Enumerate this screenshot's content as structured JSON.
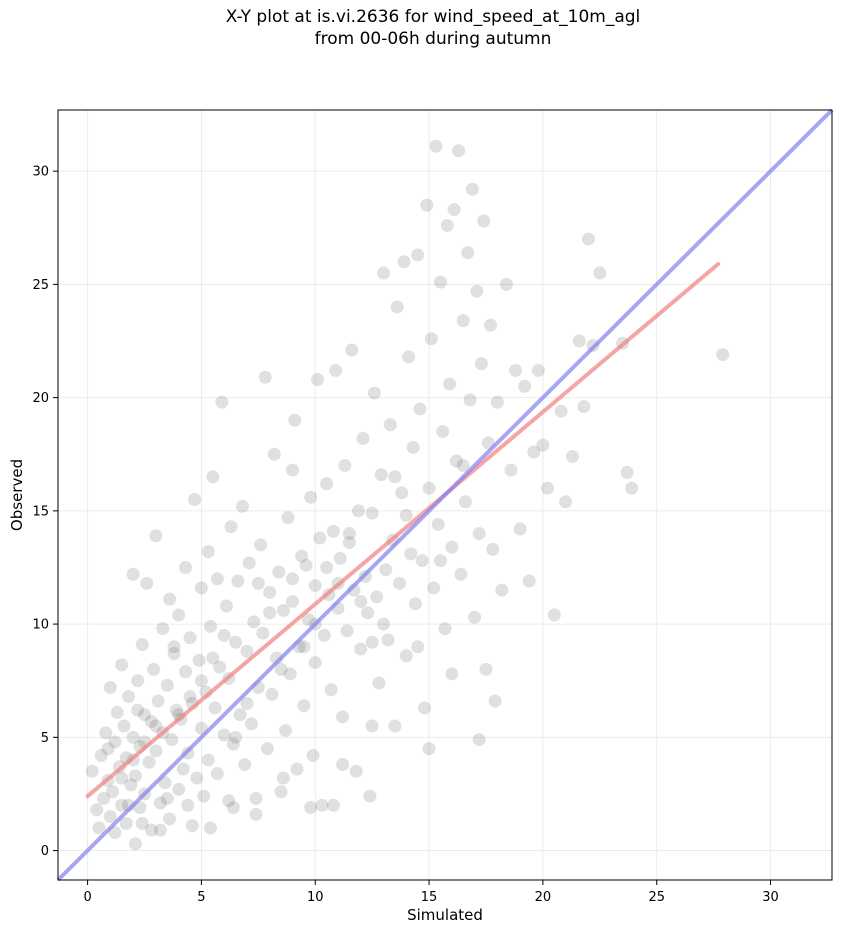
{
  "chart_data": {
    "type": "scatter",
    "title_line1": "X-Y plot at is.vi.2636 for wind_speed_at_10m_agl",
    "title_line2": "from 00-06h during autumn",
    "xlabel": "Simulated",
    "ylabel": "Observed",
    "xlim": [
      -1.3,
      32.7
    ],
    "ylim": [
      -1.3,
      32.7
    ],
    "xticks": [
      0,
      5,
      10,
      15,
      20,
      25,
      30
    ],
    "yticks": [
      0,
      5,
      10,
      15,
      20,
      25,
      30
    ],
    "grid": true,
    "point_color": "#404040",
    "fit_line": {
      "color": "#f08080",
      "x": [
        0,
        27.7
      ],
      "y": [
        2.4,
        25.9
      ]
    },
    "identity_line": {
      "color": "#8080f0",
      "x": [
        -1.3,
        32.7
      ],
      "y": [
        -1.3,
        32.7
      ]
    },
    "points": [
      [
        0.2,
        3.5
      ],
      [
        0.4,
        1.8
      ],
      [
        0.5,
        1.0
      ],
      [
        0.6,
        4.2
      ],
      [
        0.7,
        2.3
      ],
      [
        0.8,
        5.2
      ],
      [
        0.9,
        3.1
      ],
      [
        1.0,
        1.5
      ],
      [
        1.0,
        7.2
      ],
      [
        1.1,
        2.6
      ],
      [
        1.2,
        4.8
      ],
      [
        1.2,
        0.8
      ],
      [
        1.3,
        6.1
      ],
      [
        1.4,
        3.7
      ],
      [
        1.5,
        2.0
      ],
      [
        1.5,
        8.2
      ],
      [
        1.6,
        5.5
      ],
      [
        1.7,
        1.2
      ],
      [
        1.7,
        4.1
      ],
      [
        1.8,
        6.8
      ],
      [
        1.9,
        2.9
      ],
      [
        2.0,
        5.0
      ],
      [
        2.0,
        12.2
      ],
      [
        2.1,
        3.3
      ],
      [
        2.1,
        0.3
      ],
      [
        2.2,
        7.5
      ],
      [
        2.3,
        4.6
      ],
      [
        2.3,
        1.9
      ],
      [
        2.4,
        9.1
      ],
      [
        2.5,
        6.0
      ],
      [
        2.5,
        2.5
      ],
      [
        2.6,
        11.8
      ],
      [
        2.7,
        3.9
      ],
      [
        2.8,
        5.7
      ],
      [
        2.8,
        0.9
      ],
      [
        2.9,
        8.0
      ],
      [
        3.0,
        4.4
      ],
      [
        3.0,
        13.9
      ],
      [
        3.1,
        6.6
      ],
      [
        3.2,
        2.1
      ],
      [
        3.3,
        9.8
      ],
      [
        3.3,
        5.2
      ],
      [
        3.4,
        3.0
      ],
      [
        3.5,
        7.3
      ],
      [
        3.6,
        11.1
      ],
      [
        3.6,
        1.4
      ],
      [
        3.7,
        4.9
      ],
      [
        3.8,
        8.7
      ],
      [
        3.9,
        6.2
      ],
      [
        4.0,
        2.7
      ],
      [
        4.0,
        10.4
      ],
      [
        4.1,
        5.8
      ],
      [
        4.2,
        3.6
      ],
      [
        4.3,
        12.5
      ],
      [
        4.3,
        7.9
      ],
      [
        4.4,
        4.3
      ],
      [
        4.5,
        9.4
      ],
      [
        4.6,
        1.1
      ],
      [
        4.6,
        6.5
      ],
      [
        4.7,
        15.5
      ],
      [
        4.8,
        3.2
      ],
      [
        4.9,
        8.4
      ],
      [
        5.0,
        5.4
      ],
      [
        5.0,
        11.6
      ],
      [
        5.1,
        2.4
      ],
      [
        5.2,
        7.0
      ],
      [
        5.3,
        13.2
      ],
      [
        5.3,
        4.0
      ],
      [
        5.4,
        9.9
      ],
      [
        5.5,
        16.5
      ],
      [
        5.6,
        6.3
      ],
      [
        5.7,
        3.4
      ],
      [
        5.7,
        12.0
      ],
      [
        5.8,
        8.1
      ],
      [
        5.9,
        19.8
      ],
      [
        6.0,
        5.1
      ],
      [
        6.1,
        10.8
      ],
      [
        6.2,
        2.2
      ],
      [
        6.2,
        7.6
      ],
      [
        6.3,
        14.3
      ],
      [
        6.4,
        4.7
      ],
      [
        6.5,
        9.2
      ],
      [
        6.6,
        11.9
      ],
      [
        6.7,
        6.0
      ],
      [
        6.8,
        15.2
      ],
      [
        6.9,
        3.8
      ],
      [
        7.0,
        8.8
      ],
      [
        7.1,
        12.7
      ],
      [
        7.2,
        5.6
      ],
      [
        7.3,
        10.1
      ],
      [
        7.4,
        1.6
      ],
      [
        7.5,
        7.2
      ],
      [
        7.6,
        13.5
      ],
      [
        7.7,
        9.6
      ],
      [
        7.8,
        20.9
      ],
      [
        7.9,
        4.5
      ],
      [
        8.0,
        11.4
      ],
      [
        8.1,
        6.9
      ],
      [
        8.2,
        17.5
      ],
      [
        8.3,
        8.5
      ],
      [
        8.4,
        12.3
      ],
      [
        8.5,
        2.6
      ],
      [
        8.6,
        10.6
      ],
      [
        8.7,
        5.3
      ],
      [
        8.8,
        14.7
      ],
      [
        8.9,
        7.8
      ],
      [
        9.0,
        16.8
      ],
      [
        9.0,
        11.0
      ],
      [
        9.1,
        19.0
      ],
      [
        9.2,
        3.6
      ],
      [
        9.3,
        9.0
      ],
      [
        9.4,
        13.0
      ],
      [
        9.5,
        6.4
      ],
      [
        9.6,
        12.6
      ],
      [
        9.7,
        10.2
      ],
      [
        9.8,
        15.6
      ],
      [
        9.9,
        4.2
      ],
      [
        10.0,
        11.7
      ],
      [
        10.0,
        8.3
      ],
      [
        10.1,
        20.8
      ],
      [
        10.2,
        13.8
      ],
      [
        10.3,
        2.0
      ],
      [
        10.4,
        9.5
      ],
      [
        10.5,
        16.2
      ],
      [
        10.6,
        11.3
      ],
      [
        10.7,
        7.1
      ],
      [
        10.8,
        14.1
      ],
      [
        10.9,
        21.2
      ],
      [
        11.0,
        10.7
      ],
      [
        11.1,
        12.9
      ],
      [
        11.2,
        5.9
      ],
      [
        11.3,
        17.0
      ],
      [
        11.4,
        9.7
      ],
      [
        11.5,
        13.6
      ],
      [
        11.6,
        22.1
      ],
      [
        11.7,
        11.5
      ],
      [
        11.8,
        3.5
      ],
      [
        11.9,
        15.0
      ],
      [
        12.0,
        8.9
      ],
      [
        12.1,
        18.2
      ],
      [
        12.2,
        12.1
      ],
      [
        12.3,
        10.5
      ],
      [
        12.4,
        2.4
      ],
      [
        12.5,
        14.9
      ],
      [
        12.6,
        20.2
      ],
      [
        12.7,
        11.2
      ],
      [
        12.8,
        7.4
      ],
      [
        12.9,
        16.6
      ],
      [
        13.0,
        25.5
      ],
      [
        13.1,
        12.4
      ],
      [
        13.2,
        9.3
      ],
      [
        13.3,
        18.8
      ],
      [
        13.4,
        13.7
      ],
      [
        13.5,
        5.5
      ],
      [
        13.6,
        24.0
      ],
      [
        13.7,
        11.8
      ],
      [
        13.8,
        15.8
      ],
      [
        13.9,
        26.0
      ],
      [
        14.0,
        8.6
      ],
      [
        14.1,
        21.8
      ],
      [
        14.2,
        13.1
      ],
      [
        14.3,
        17.8
      ],
      [
        14.4,
        10.9
      ],
      [
        14.5,
        26.3
      ],
      [
        14.6,
        19.5
      ],
      [
        14.7,
        12.8
      ],
      [
        14.8,
        6.3
      ],
      [
        14.9,
        28.5
      ],
      [
        15.0,
        16.0
      ],
      [
        15.1,
        22.6
      ],
      [
        15.2,
        11.6
      ],
      [
        15.3,
        31.1
      ],
      [
        15.4,
        14.4
      ],
      [
        15.5,
        25.1
      ],
      [
        15.6,
        18.5
      ],
      [
        15.7,
        9.8
      ],
      [
        15.8,
        27.6
      ],
      [
        15.9,
        20.6
      ],
      [
        16.0,
        13.4
      ],
      [
        16.1,
        28.3
      ],
      [
        16.2,
        17.2
      ],
      [
        16.3,
        30.9
      ],
      [
        16.4,
        12.2
      ],
      [
        16.5,
        23.4
      ],
      [
        16.6,
        15.4
      ],
      [
        16.7,
        26.4
      ],
      [
        16.8,
        19.9
      ],
      [
        16.9,
        29.2
      ],
      [
        17.0,
        10.3
      ],
      [
        17.1,
        24.7
      ],
      [
        17.2,
        14.0
      ],
      [
        17.3,
        21.5
      ],
      [
        17.4,
        27.8
      ],
      [
        17.5,
        8.0
      ],
      [
        17.6,
        18.0
      ],
      [
        17.7,
        23.2
      ],
      [
        17.8,
        13.3
      ],
      [
        17.9,
        6.6
      ],
      [
        18.0,
        19.8
      ],
      [
        18.2,
        11.5
      ],
      [
        18.4,
        25.0
      ],
      [
        18.6,
        16.8
      ],
      [
        18.8,
        21.2
      ],
      [
        19.0,
        14.2
      ],
      [
        19.2,
        20.5
      ],
      [
        19.4,
        11.9
      ],
      [
        19.6,
        17.6
      ],
      [
        19.8,
        21.2
      ],
      [
        20.0,
        17.9
      ],
      [
        20.2,
        16.0
      ],
      [
        20.5,
        10.4
      ],
      [
        20.8,
        19.4
      ],
      [
        21.0,
        15.4
      ],
      [
        21.3,
        17.4
      ],
      [
        21.6,
        22.5
      ],
      [
        21.8,
        19.6
      ],
      [
        22.0,
        27.0
      ],
      [
        22.2,
        22.3
      ],
      [
        22.5,
        25.5
      ],
      [
        23.5,
        22.4
      ],
      [
        23.7,
        16.7
      ],
      [
        23.9,
        16.0
      ],
      [
        27.9,
        21.9
      ],
      [
        3.0,
        5.5
      ],
      [
        2.0,
        4.0
      ],
      [
        4.5,
        6.8
      ],
      [
        6.5,
        5.0
      ],
      [
        8.0,
        10.5
      ],
      [
        9.5,
        9.0
      ],
      [
        11.0,
        11.8
      ],
      [
        12.0,
        11.0
      ],
      [
        10.5,
        12.5
      ],
      [
        13.0,
        10.0
      ],
      [
        5.5,
        8.5
      ],
      [
        7.0,
        6.5
      ],
      [
        1.5,
        3.2
      ],
      [
        2.5,
        4.8
      ],
      [
        3.5,
        2.3
      ],
      [
        4.0,
        6.0
      ],
      [
        6.0,
        9.5
      ],
      [
        8.5,
        8.0
      ],
      [
        9.0,
        12.0
      ],
      [
        12.5,
        9.2
      ],
      [
        14.0,
        14.8
      ],
      [
        15.5,
        12.8
      ],
      [
        16.5,
        17.0
      ],
      [
        13.5,
        16.5
      ],
      [
        11.5,
        14.0
      ],
      [
        10.0,
        10.0
      ],
      [
        7.5,
        11.8
      ],
      [
        5.0,
        7.5
      ],
      [
        3.8,
        9.0
      ],
      [
        2.2,
        6.2
      ],
      [
        1.8,
        2.0
      ],
      [
        0.9,
        4.5
      ],
      [
        14.5,
        9.0
      ],
      [
        16.0,
        7.8
      ],
      [
        17.2,
        4.9
      ],
      [
        15.0,
        4.5
      ],
      [
        12.5,
        5.5
      ],
      [
        11.2,
        3.8
      ],
      [
        10.8,
        2.0
      ],
      [
        9.8,
        1.9
      ],
      [
        8.6,
        3.2
      ],
      [
        7.4,
        2.3
      ],
      [
        6.4,
        1.9
      ],
      [
        5.4,
        1.0
      ],
      [
        4.4,
        2.0
      ],
      [
        3.2,
        0.9
      ],
      [
        2.4,
        1.2
      ]
    ]
  }
}
